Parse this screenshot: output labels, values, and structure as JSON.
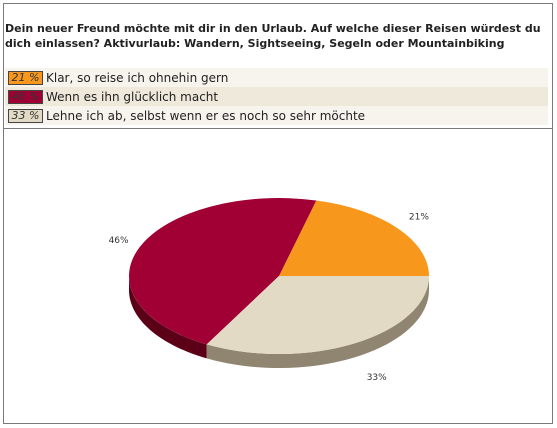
{
  "question": "Dein neuer Freund möchte mit dir in den Urlaub. Auf welche dieser Reisen würdest du dich einlassen? Aktivurlaub: Wandern, Sightseeing, Segeln oder Mountainbiking",
  "legend": [
    {
      "percent_label": "21 %",
      "text": "Klar, so reise ich ohnehin gern",
      "color": "#f7981d"
    },
    {
      "percent_label": "46 %",
      "text": "Wenn es ihn glücklich macht",
      "color": "#a00034"
    },
    {
      "percent_label": "33 %",
      "text": "Lehne ich ab, selbst wenn er es noch so sehr möchte",
      "color": "#e2dac5"
    }
  ],
  "chart_data": {
    "type": "pie",
    "slices": [
      {
        "label": "Klar, so reise ich ohnehin gern",
        "value": 21,
        "value_label": "21%",
        "color": "#f7981d",
        "side_color": "#b86a0a"
      },
      {
        "label": "Wenn es ihn glücklich macht",
        "value": 46,
        "value_label": "46%",
        "color": "#a00034",
        "side_color": "#5c0018"
      },
      {
        "label": "Lehne ich ab, selbst wenn er es noch so sehr möchte",
        "value": 33,
        "value_label": "33%",
        "color": "#e2dac5",
        "side_color": "#8f8570"
      }
    ],
    "three_d": true
  }
}
